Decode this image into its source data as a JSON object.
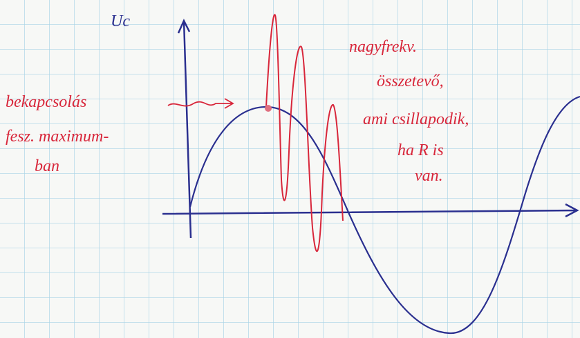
{
  "axis_label": "Uc",
  "left_note": {
    "lines": [
      "bekapcsolás",
      "fesz. maximum-",
      "ban"
    ]
  },
  "right_note": {
    "lines": [
      "nagyfrekv.",
      "összetevő,",
      "ami csillapodik,",
      "ha R is",
      "van."
    ]
  }
}
